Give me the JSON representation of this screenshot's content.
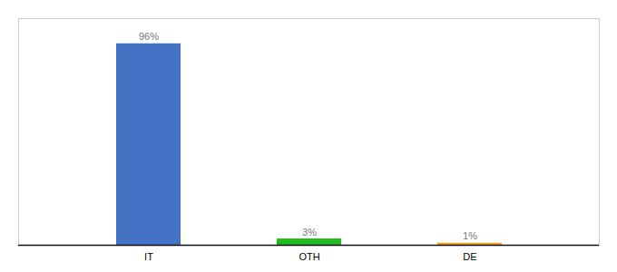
{
  "chart_data": {
    "type": "bar",
    "categories": [
      "IT",
      "OTH",
      "DE"
    ],
    "values": [
      96,
      3,
      1
    ],
    "value_labels": [
      "96%",
      "3%",
      "1%"
    ],
    "colors": [
      "#4472c4",
      "#22bb22",
      "#f5a623"
    ],
    "ylim": [
      0,
      108
    ],
    "yticks": [],
    "data_labels": true,
    "tick_labels": "x",
    "grid": false
  }
}
